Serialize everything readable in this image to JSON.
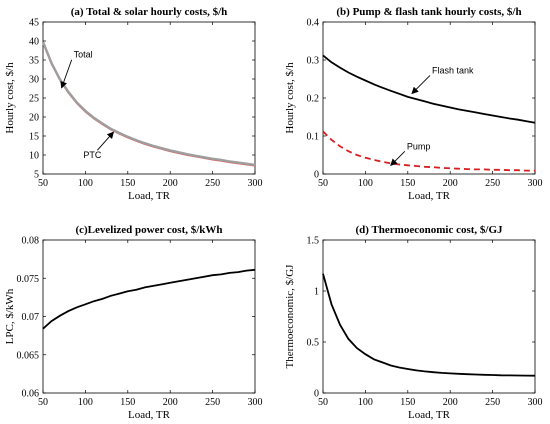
{
  "chart_data": [
    {
      "id": "a",
      "type": "line",
      "title": "(a) Total & solar hourly costs, $/h",
      "xlabel": "Load, TR",
      "ylabel": "Hourly cost, $/h",
      "xlim": [
        50,
        300
      ],
      "ylim": [
        5,
        45
      ],
      "xticks": [
        50,
        100,
        150,
        200,
        250,
        300
      ],
      "yticks": [
        5,
        10,
        15,
        20,
        25,
        30,
        35,
        40,
        45
      ],
      "series": [
        {
          "name": "Total",
          "color": "#9e9e9e",
          "dash": "",
          "x": [
            50,
            60,
            70,
            80,
            90,
            100,
            110,
            120,
            130,
            140,
            150,
            160,
            170,
            180,
            190,
            200,
            210,
            220,
            230,
            240,
            250,
            260,
            270,
            280,
            290,
            300
          ],
          "y": [
            39.8,
            34.2,
            29.9,
            26.6,
            23.8,
            21.6,
            19.8,
            18.3,
            16.9,
            15.8,
            14.8,
            13.9,
            13.1,
            12.4,
            11.8,
            11.2,
            10.7,
            10.2,
            9.8,
            9.4,
            9.0,
            8.7,
            8.3,
            8.0,
            7.7,
            7.4
          ]
        },
        {
          "name": "PTC",
          "color": "#d9534f",
          "dash": "",
          "x": [
            50,
            60,
            70,
            80,
            90,
            100,
            110,
            120,
            130,
            140,
            150,
            160,
            170,
            180,
            190,
            200,
            210,
            220,
            230,
            240,
            250,
            260,
            270,
            280,
            290,
            300
          ],
          "y": [
            39.6,
            34.0,
            29.7,
            26.4,
            23.6,
            21.4,
            19.6,
            18.1,
            16.7,
            15.6,
            14.6,
            13.7,
            12.9,
            12.2,
            11.6,
            11.0,
            10.5,
            10.0,
            9.6,
            9.2,
            8.8,
            8.5,
            8.1,
            7.8,
            7.5,
            7.2
          ]
        }
      ],
      "annotations": [
        {
          "text": "Total",
          "x": 72,
          "y": 27.7
        },
        {
          "text": "PTC",
          "x": 133,
          "y": 16.0
        }
      ]
    },
    {
      "id": "b",
      "type": "line",
      "title": "(b) Pump & flash tank hourly costs, $/h",
      "xlabel": "Load, TR",
      "ylabel": "Hourly cost, $/h",
      "xlim": [
        50,
        300
      ],
      "ylim": [
        0,
        0.4
      ],
      "xticks": [
        50,
        100,
        150,
        200,
        250,
        300
      ],
      "yticks": [
        0,
        0.1,
        0.2,
        0.3,
        0.4
      ],
      "series": [
        {
          "name": "Flash tank",
          "color": "#000000",
          "dash": "",
          "x": [
            50,
            60,
            70,
            80,
            90,
            100,
            110,
            120,
            130,
            140,
            150,
            160,
            170,
            180,
            190,
            200,
            210,
            220,
            230,
            240,
            250,
            260,
            270,
            280,
            290,
            300
          ],
          "y": [
            0.312,
            0.294,
            0.28,
            0.267,
            0.256,
            0.246,
            0.236,
            0.227,
            0.219,
            0.211,
            0.203,
            0.197,
            0.191,
            0.185,
            0.18,
            0.175,
            0.17,
            0.166,
            0.162,
            0.158,
            0.154,
            0.15,
            0.146,
            0.143,
            0.139,
            0.135
          ]
        },
        {
          "name": "Pump",
          "color": "#d62020",
          "dash": "6,4",
          "x": [
            50,
            60,
            70,
            80,
            90,
            100,
            110,
            120,
            130,
            140,
            150,
            160,
            170,
            180,
            190,
            200,
            210,
            220,
            230,
            240,
            250,
            260,
            270,
            280,
            290,
            300
          ],
          "y": [
            0.112,
            0.09,
            0.073,
            0.06,
            0.05,
            0.043,
            0.037,
            0.032,
            0.028,
            0.025,
            0.023,
            0.021,
            0.019,
            0.018,
            0.016,
            0.015,
            0.014,
            0.013,
            0.012,
            0.012,
            0.011,
            0.011,
            0.01,
            0.01,
            0.009,
            0.009
          ]
        }
      ],
      "annotations": [
        {
          "text": "Flash tank",
          "x": 155,
          "y": 0.212
        },
        {
          "text": "Pump",
          "x": 130,
          "y": 0.023
        }
      ]
    },
    {
      "id": "c",
      "type": "line",
      "title": "(c)Levelized power cost, $/kWh",
      "xlabel": "Load, TR",
      "ylabel": "LPC, $/kWh",
      "xlim": [
        50,
        300
      ],
      "ylim": [
        0.06,
        0.08
      ],
      "xticks": [
        50,
        100,
        150,
        200,
        250,
        300
      ],
      "yticks": [
        0.06,
        0.065,
        0.07,
        0.075,
        0.08
      ],
      "series": [
        {
          "name": "",
          "color": "#000000",
          "dash": "",
          "x": [
            50,
            60,
            70,
            80,
            90,
            100,
            110,
            120,
            130,
            140,
            150,
            160,
            170,
            180,
            190,
            200,
            210,
            220,
            230,
            240,
            250,
            260,
            270,
            280,
            290,
            300
          ],
          "y": [
            0.0684,
            0.0694,
            0.0701,
            0.0707,
            0.0712,
            0.0716,
            0.072,
            0.0723,
            0.0727,
            0.073,
            0.0733,
            0.0735,
            0.0738,
            0.074,
            0.0742,
            0.0744,
            0.0746,
            0.0748,
            0.075,
            0.0752,
            0.0754,
            0.0755,
            0.0757,
            0.0758,
            0.076,
            0.0761
          ]
        }
      ]
    },
    {
      "id": "d",
      "type": "line",
      "title": "(d) Thermoeconomic cost, $/GJ",
      "xlabel": "Load, TR",
      "ylabel": "Thermoeconomic, $/GJ",
      "xlim": [
        50,
        300
      ],
      "ylim": [
        0,
        1.5
      ],
      "xticks": [
        50,
        100,
        150,
        200,
        250,
        300
      ],
      "yticks": [
        0,
        0.5,
        1,
        1.5
      ],
      "series": [
        {
          "name": "",
          "color": "#000000",
          "dash": "",
          "x": [
            50,
            60,
            70,
            80,
            90,
            100,
            110,
            120,
            130,
            140,
            150,
            160,
            170,
            180,
            190,
            200,
            210,
            220,
            230,
            240,
            250,
            260,
            270,
            280,
            290,
            300
          ],
          "y": [
            1.17,
            0.87,
            0.67,
            0.53,
            0.44,
            0.38,
            0.33,
            0.3,
            0.27,
            0.25,
            0.235,
            0.222,
            0.212,
            0.204,
            0.197,
            0.192,
            0.188,
            0.184,
            0.181,
            0.178,
            0.176,
            0.174,
            0.173,
            0.172,
            0.171,
            0.17
          ]
        }
      ]
    }
  ]
}
